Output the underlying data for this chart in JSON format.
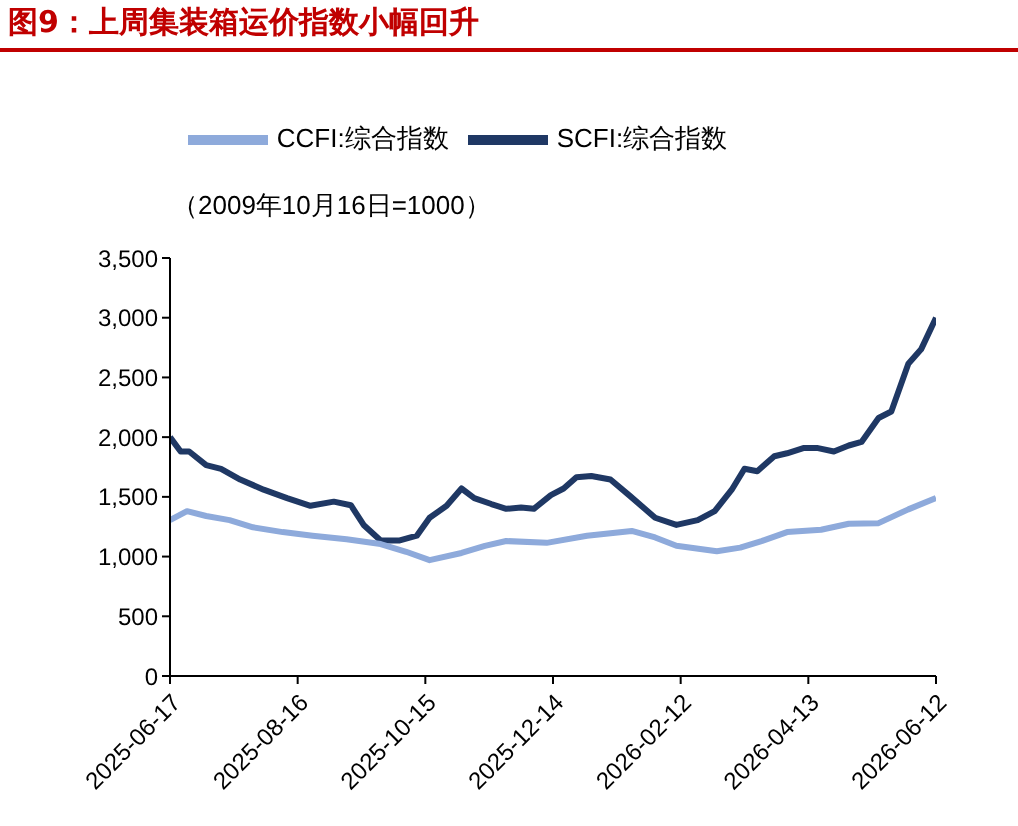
{
  "chart_data": {
    "type": "line",
    "title": "图9：上周集装箱运价指数小幅回升",
    "annotations": [
      "（2009年10月16日=1000）"
    ],
    "legend": "top",
    "grid": false,
    "marker": "none",
    "line_style": "solid",
    "ylim": [
      0,
      3500
    ],
    "yticks": [
      0,
      500,
      {
        "value": 1000,
        "label": "1,000"
      },
      {
        "value": 1500,
        "label": "1,500"
      },
      {
        "value": 2000,
        "label": "2,000"
      },
      {
        "value": 2500,
        "label": "2,500"
      },
      {
        "value": 3000,
        "label": "3,000"
      },
      {
        "value": 3500,
        "label": "3,500"
      }
    ],
    "xlim": [
      "2025-06-17",
      "2026-06-12"
    ],
    "xticks": [
      "2025-06-17",
      "2025-08-16",
      "2025-10-15",
      "2025-12-14",
      "2026-02-12",
      "2026-04-13",
      "2026-06-12"
    ],
    "series": [
      {
        "name": "SCFI:综合指数",
        "color": "#1f3864",
        "x": [
          "2025-06-17",
          "2025-06-22",
          "2025-06-26",
          "2025-07-04",
          "2025-07-11",
          "2025-07-20",
          "2025-07-31",
          "2025-08-11",
          "2025-08-22",
          "2025-09-02",
          "2025-09-10",
          "2025-09-16",
          "2025-09-24",
          "2025-10-03",
          "2025-10-11",
          "2025-10-17",
          "2025-10-25",
          "2025-11-01",
          "2025-11-07",
          "2025-11-15",
          "2025-11-22",
          "2025-11-29",
          "2025-12-05",
          "2025-12-13",
          "2025-12-19",
          "2025-12-25",
          "2026-01-01",
          "2026-01-10",
          "2026-01-19",
          "2026-01-31",
          "2026-02-10",
          "2026-02-20",
          "2026-02-28",
          "2026-03-08",
          "2026-03-14",
          "2026-03-20",
          "2026-03-28",
          "2026-04-03",
          "2026-04-11",
          "2026-04-17",
          "2026-04-25",
          "2026-05-02",
          "2026-05-08",
          "2026-05-16",
          "2026-05-22",
          "2026-05-30",
          "2026-06-05",
          "2026-06-12"
        ],
        "values": [
          2000,
          1880,
          1880,
          1765,
          1735,
          1645,
          1560,
          1490,
          1425,
          1460,
          1430,
          1265,
          1135,
          1135,
          1175,
          1325,
          1425,
          1570,
          1490,
          1440,
          1400,
          1410,
          1400,
          1515,
          1570,
          1665,
          1675,
          1645,
          1510,
          1325,
          1265,
          1305,
          1380,
          1560,
          1735,
          1715,
          1840,
          1865,
          1910,
          1910,
          1880,
          1930,
          1960,
          2160,
          2215,
          2615,
          2735,
          3000
        ]
      },
      {
        "name": "CCFI:综合指数",
        "color": "#8eaadb",
        "x": [
          "2025-06-17",
          "2025-06-25",
          "2025-07-04",
          "2025-07-15",
          "2025-07-26",
          "2025-08-09",
          "2025-08-23",
          "2025-09-08",
          "2025-09-24",
          "2025-10-06",
          "2025-10-17",
          "2025-11-01",
          "2025-11-12",
          "2025-11-22",
          "2025-12-11",
          "2025-12-30",
          "2026-01-20",
          "2026-01-31",
          "2026-02-10",
          "2026-03-01",
          "2026-03-12",
          "2026-03-22",
          "2026-04-03",
          "2026-04-19",
          "2026-05-02",
          "2026-05-16",
          "2026-05-30",
          "2026-06-12"
        ],
        "values": [
          1305,
          1380,
          1340,
          1305,
          1245,
          1205,
          1175,
          1145,
          1105,
          1040,
          970,
          1030,
          1090,
          1130,
          1115,
          1175,
          1215,
          1160,
          1090,
          1045,
          1075,
          1130,
          1205,
          1225,
          1275,
          1280,
          1395,
          1490
        ]
      }
    ]
  }
}
